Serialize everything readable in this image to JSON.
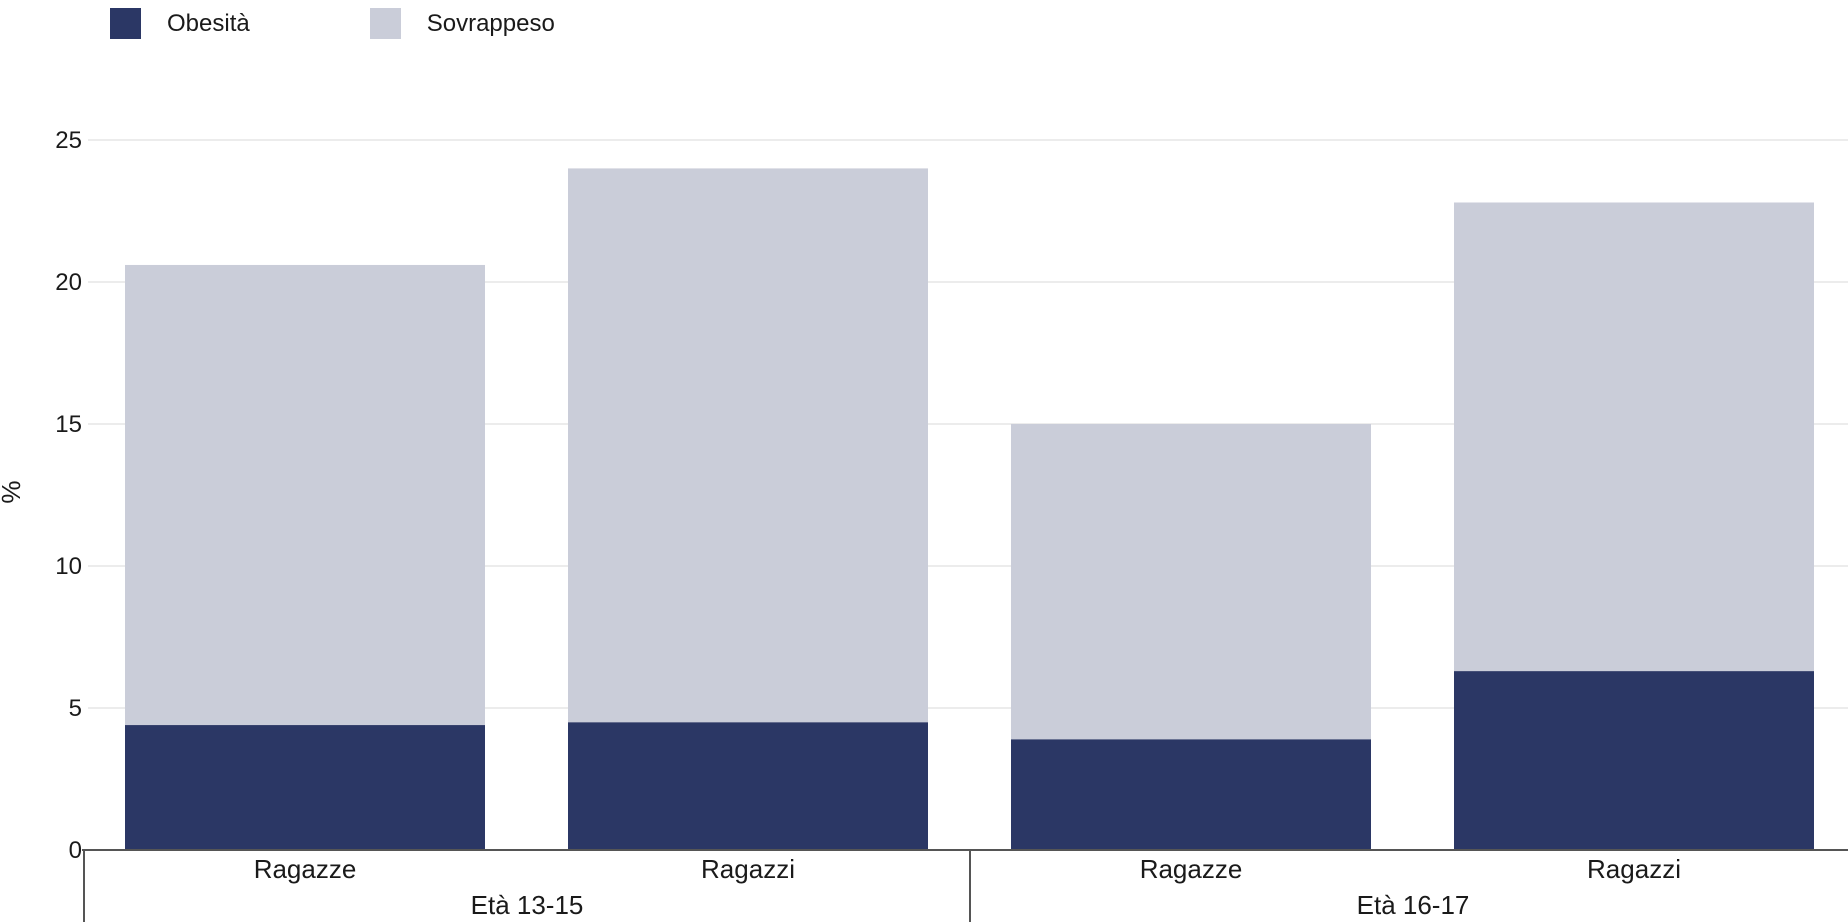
{
  "chart_data": {
    "type": "bar",
    "stacked": true,
    "categories": [
      "Ragazze",
      "Ragazzi",
      "Ragazze",
      "Ragazzi"
    ],
    "groups": [
      {
        "label": "Età 13-15",
        "categories": [
          0,
          1
        ]
      },
      {
        "label": "Età 16-17",
        "categories": [
          2,
          3
        ]
      }
    ],
    "series": [
      {
        "name": "Obesità",
        "color": "#2b3765",
        "values": [
          4.4,
          4.5,
          3.9,
          6.3
        ]
      },
      {
        "name": "Sovrappeso",
        "color": "#cacdd9",
        "values": [
          16.2,
          19.5,
          11.1,
          16.5
        ]
      }
    ],
    "ylabel": "%",
    "ylim": [
      0,
      25
    ],
    "yticks": [
      0,
      5,
      10,
      15,
      20,
      25
    ],
    "grid": true,
    "legend_position": "top-left"
  }
}
